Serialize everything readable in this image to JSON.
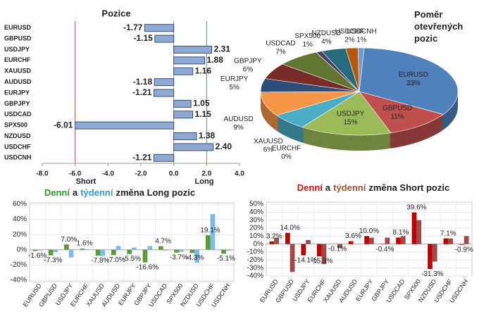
{
  "chart_data": [
    {
      "type": "bar",
      "horizontal": true,
      "title": "Pozice",
      "categories": [
        "EURUSD",
        "GBPUSD",
        "USDJPY",
        "EURCHF",
        "XAUUSD",
        "AUDUSD",
        "EURJPY",
        "GBPJPY",
        "USDCAD",
        "SPX500",
        "NZDUSD",
        "USDCHF",
        "USDCNH"
      ],
      "values": [
        -1.77,
        -1.15,
        2.31,
        1.88,
        1.16,
        -1.18,
        -1.21,
        1.05,
        1.15,
        -6.01,
        1.38,
        2.4,
        -1.21
      ],
      "value_labels": [
        "-1.77",
        "-1.15",
        "2.31",
        "1.88",
        "1.16",
        "-1.18",
        "-1.21",
        "1.05",
        "1.15",
        "-6.01",
        "1.38",
        "2.40",
        "-1.21"
      ],
      "color": "#8eaad3",
      "xlim": [
        -8,
        4
      ],
      "xticks": [
        {
          "value": -8,
          "label": "-8.0"
        },
        {
          "value": -6,
          "label": "-6.0"
        },
        {
          "value": -4,
          "label": "-4.0"
        },
        {
          "value": -2,
          "label": "-2.0"
        },
        {
          "value": 0,
          "label": "0.0"
        },
        {
          "value": 2,
          "label": "2.0"
        },
        {
          "value": 4,
          "label": "4.0"
        }
      ],
      "reference_lines": [
        {
          "value": -6,
          "color": "#c0504d"
        },
        {
          "value": 2,
          "color": "#4ea72e"
        }
      ],
      "annotations": [
        "Short",
        "Long"
      ]
    },
    {
      "type": "pie",
      "title": "Poměr otevřených pozic",
      "categories": [
        "EURUSD",
        "GBPUSD",
        "USDJPY",
        "EURCHF",
        "XAUUSD",
        "AUDUSD",
        "EURJPY",
        "GBPJPY",
        "USDCAD",
        "SPX500",
        "NZDUSD",
        "USDCHF",
        "USDCNH"
      ],
      "values": [
        33,
        11,
        15,
        0,
        6,
        9,
        5,
        6,
        7,
        1,
        4,
        2,
        1
      ],
      "value_labels": [
        "33%",
        "11%",
        "15%",
        "0%",
        "6%",
        "9%",
        "5%",
        "6%",
        "7%",
        "1%",
        "4%",
        "2%",
        "1%"
      ],
      "colors": [
        "#4f81bd",
        "#c0504d",
        "#9bbb59",
        "#8064a2",
        "#4bacc6",
        "#f79646",
        "#2c4d75",
        "#772c2a",
        "#5f7530",
        "#4d3b62",
        "#276a7c",
        "#b65708",
        "#729aca"
      ]
    },
    {
      "type": "bar",
      "title_parts": [
        {
          "text": "Denní",
          "color": "#2e9a2e"
        },
        {
          "text": "a",
          "color": "#222"
        },
        {
          "text": "týdenní",
          "color": "#3399cc"
        },
        {
          "text": "změna Long pozic",
          "color": "#222"
        }
      ],
      "categories": [
        "EURUSD",
        "GBPUSD",
        "USDJPY",
        "EURCHF",
        "XAUUSD",
        "AUDUSD",
        "EURJPY",
        "GBPJPY",
        "USDCAD",
        "SPX500",
        "NZDUSD",
        "USDCHF",
        "USDCNH"
      ],
      "series": [
        {
          "color": "#5a9a3a",
          "values": [
            -1.6,
            -7.3,
            7.0,
            1.6,
            -7.8,
            -7.0,
            -5.5,
            -16.6,
            4.7,
            -3.7,
            -4.3,
            19.1,
            -5.1
          ],
          "value_labels": [
            "-1.6%",
            "-7.3%",
            "7.0%",
            "1.6%",
            "-7.8%",
            "-7.0%",
            "-5.5%",
            "-16.6%",
            "4.7%",
            "-3.7%",
            "-4.3%",
            "19.1%",
            "-5.1%"
          ]
        },
        {
          "color": "#7fb8ea",
          "values": [
            -1,
            -3,
            -10,
            1,
            -8,
            5,
            3,
            5,
            -1,
            -3,
            -17,
            47,
            -1
          ]
        }
      ],
      "ylim": [
        -40,
        60
      ],
      "yticks": [
        {
          "value": -40,
          "label": "-40%"
        },
        {
          "value": -20,
          "label": "-20%"
        },
        {
          "value": 0,
          "label": "0%"
        },
        {
          "value": 20,
          "label": "20%"
        },
        {
          "value": 40,
          "label": "40%"
        },
        {
          "value": 60,
          "label": "60%"
        }
      ],
      "grid": true
    },
    {
      "type": "bar",
      "title_parts": [
        {
          "text": "Denní",
          "color": "#cc1111"
        },
        {
          "text": "a",
          "color": "#222"
        },
        {
          "text": "týdenní",
          "color": "#a0522d"
        },
        {
          "text": "změna Short pozic",
          "color": "#222"
        }
      ],
      "categories": [
        "EURUSD",
        "GBPUSD",
        "USDJPY",
        "EURCHF",
        "XAUUSD",
        "AUDUSD",
        "EURJPY",
        "GBPJPY",
        "USDCAD",
        "SPX500",
        "NZDUSD",
        "USDCHF",
        "USDCNH"
      ],
      "series": [
        {
          "color": "#c00000",
          "values": [
            3.2,
            14.0,
            -14.1,
            -15.3,
            -0.1,
            3.6,
            10.0,
            -0.4,
            8.1,
            39.6,
            -31.3,
            7.1,
            -0.9
          ],
          "value_labels": [
            "3.2%",
            "14.0%",
            "-14.1%",
            "-15.3%",
            "-0.1%",
            "3.6%",
            "10.0%",
            "-0.4%",
            "8.1%",
            "39.6%",
            "-31.3%",
            "7.1%",
            "-0.9%"
          ]
        },
        {
          "color": "#9c4a4a",
          "values": [
            8,
            -35,
            5,
            -25,
            -5,
            0,
            8,
            8,
            10,
            30,
            -22,
            7,
            10
          ]
        }
      ],
      "ylim": [
        -40,
        50
      ],
      "yticks": [
        {
          "value": -40,
          "label": "-40%"
        },
        {
          "value": -30,
          "label": "-30%"
        },
        {
          "value": -20,
          "label": "-20%"
        },
        {
          "value": -10,
          "label": "-10%"
        },
        {
          "value": 0,
          "label": "0%"
        },
        {
          "value": 10,
          "label": "10%"
        },
        {
          "value": 20,
          "label": "20%"
        },
        {
          "value": 30,
          "label": "30%"
        },
        {
          "value": 40,
          "label": "40%"
        },
        {
          "value": 50,
          "label": "50%"
        }
      ],
      "grid": true
    }
  ]
}
